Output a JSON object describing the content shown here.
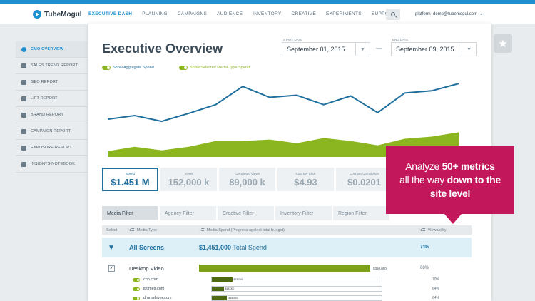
{
  "brand": {
    "name": "TubeMogul",
    "accent": "#1e8fd0",
    "callout_color": "#c2175b"
  },
  "nav": {
    "items": [
      {
        "label": "EXECUTIVE DASH",
        "active": true
      },
      {
        "label": "PLANNING",
        "active": false
      },
      {
        "label": "CAMPAIGNS",
        "active": false
      },
      {
        "label": "AUDIENCE",
        "active": false
      },
      {
        "label": "INVENTORY",
        "active": false
      },
      {
        "label": "CREATIVE",
        "active": false
      },
      {
        "label": "EXPERIMENTS",
        "active": false
      },
      {
        "label": "SUPPORT",
        "active": false
      }
    ],
    "search_icon": "search-icon",
    "user_email": "platform_demo@tubemogul.com"
  },
  "sidebar": {
    "items": [
      {
        "label": "CMO OVERVIEW",
        "icon": "pie-icon",
        "active": true
      },
      {
        "label": "SALES TREND REPORT",
        "icon": "bar-chart-icon",
        "active": false
      },
      {
        "label": "GEO REPORT",
        "icon": "pin-icon",
        "active": false
      },
      {
        "label": "LIFT REPORT",
        "icon": "lift-icon",
        "active": false
      },
      {
        "label": "BRAND REPORT",
        "icon": "brand-icon",
        "active": false
      },
      {
        "label": "CAMPAIGN REPORT",
        "icon": "campaign-icon",
        "active": false
      },
      {
        "label": "EXPOSURE REPORT",
        "icon": "exposure-icon",
        "active": false
      },
      {
        "label": "INSIGHTS NOTEBOOK",
        "icon": "notebook-icon",
        "active": false
      }
    ]
  },
  "header": {
    "title": "Executive Overview",
    "start_label": "START DATE",
    "start_value": "September 01, 2015",
    "end_label": "END DATE",
    "end_value": "September 09, 2015",
    "dash": "—"
  },
  "toggles": {
    "aggregate": "Show Aggregate Spend",
    "media_type": "Show Selected Media Type Spend"
  },
  "chart_data": {
    "type": "area",
    "series": [
      {
        "name": "Show Aggregate Spend",
        "kind": "line",
        "color": "#1e6f9e",
        "values": [
          52,
          57,
          49,
          60,
          72,
          97,
          82,
          85,
          72,
          84,
          61,
          88,
          91,
          101
        ]
      },
      {
        "name": "Show Selected Media Type Spend",
        "kind": "area",
        "color": "#8cb61f",
        "values": [
          8,
          14,
          9,
          14,
          22,
          22,
          24,
          19,
          26,
          22,
          16,
          25,
          28,
          34
        ]
      }
    ],
    "ylim": [
      0,
      110
    ],
    "grid": false
  },
  "kpis": [
    {
      "label": "Spend",
      "value": "$1.451 M",
      "active": true
    },
    {
      "label": "Views",
      "value": "152,000 k",
      "active": false
    },
    {
      "label": "Completed Views",
      "value": "89,000 k",
      "active": false
    },
    {
      "label": "Cost per Click",
      "value": "$4.93",
      "active": false
    },
    {
      "label": "Cost per Completion",
      "value": "$0.0201",
      "active": false
    }
  ],
  "tabs": [
    {
      "label": "Media Filter",
      "active": true
    },
    {
      "label": "Agency Filter",
      "active": false
    },
    {
      "label": "Creative Filter",
      "active": false
    },
    {
      "label": "Inventory Filter",
      "active": false
    },
    {
      "label": "Region Filter",
      "active": false
    }
  ],
  "table": {
    "col_select": "Select",
    "col_media": "Media Type",
    "col_spend": "Media Spend (Progress against total budget)",
    "col_view": "Viewability",
    "all_row": {
      "name": "All Screens",
      "spend_amount": "$1,451,000",
      "spend_label": "Total Spend",
      "viewability": "73%"
    },
    "desktop_row": {
      "name": "Desktop Video",
      "amount": "$350,000",
      "viewability": "68%",
      "progress": 1.0,
      "checked": "✓"
    },
    "sites": [
      {
        "name": "cnn.com",
        "amount": "$33,000",
        "progress": 0.12,
        "viewability": "70%"
      },
      {
        "name": "ibtimes.com",
        "amount": "$18,000",
        "progress": 0.07,
        "viewability": "64%"
      },
      {
        "name": "dramafever.com",
        "amount": "$15,000",
        "progress": 0.09,
        "viewability": "64%"
      }
    ]
  },
  "callout": {
    "line1_pre": "Analyze ",
    "line1_bold": "50+ metrics",
    "line2_pre": "all the way ",
    "line2_bold": "down to the",
    "line3_bold": "site level"
  },
  "star_icon": "star-icon"
}
